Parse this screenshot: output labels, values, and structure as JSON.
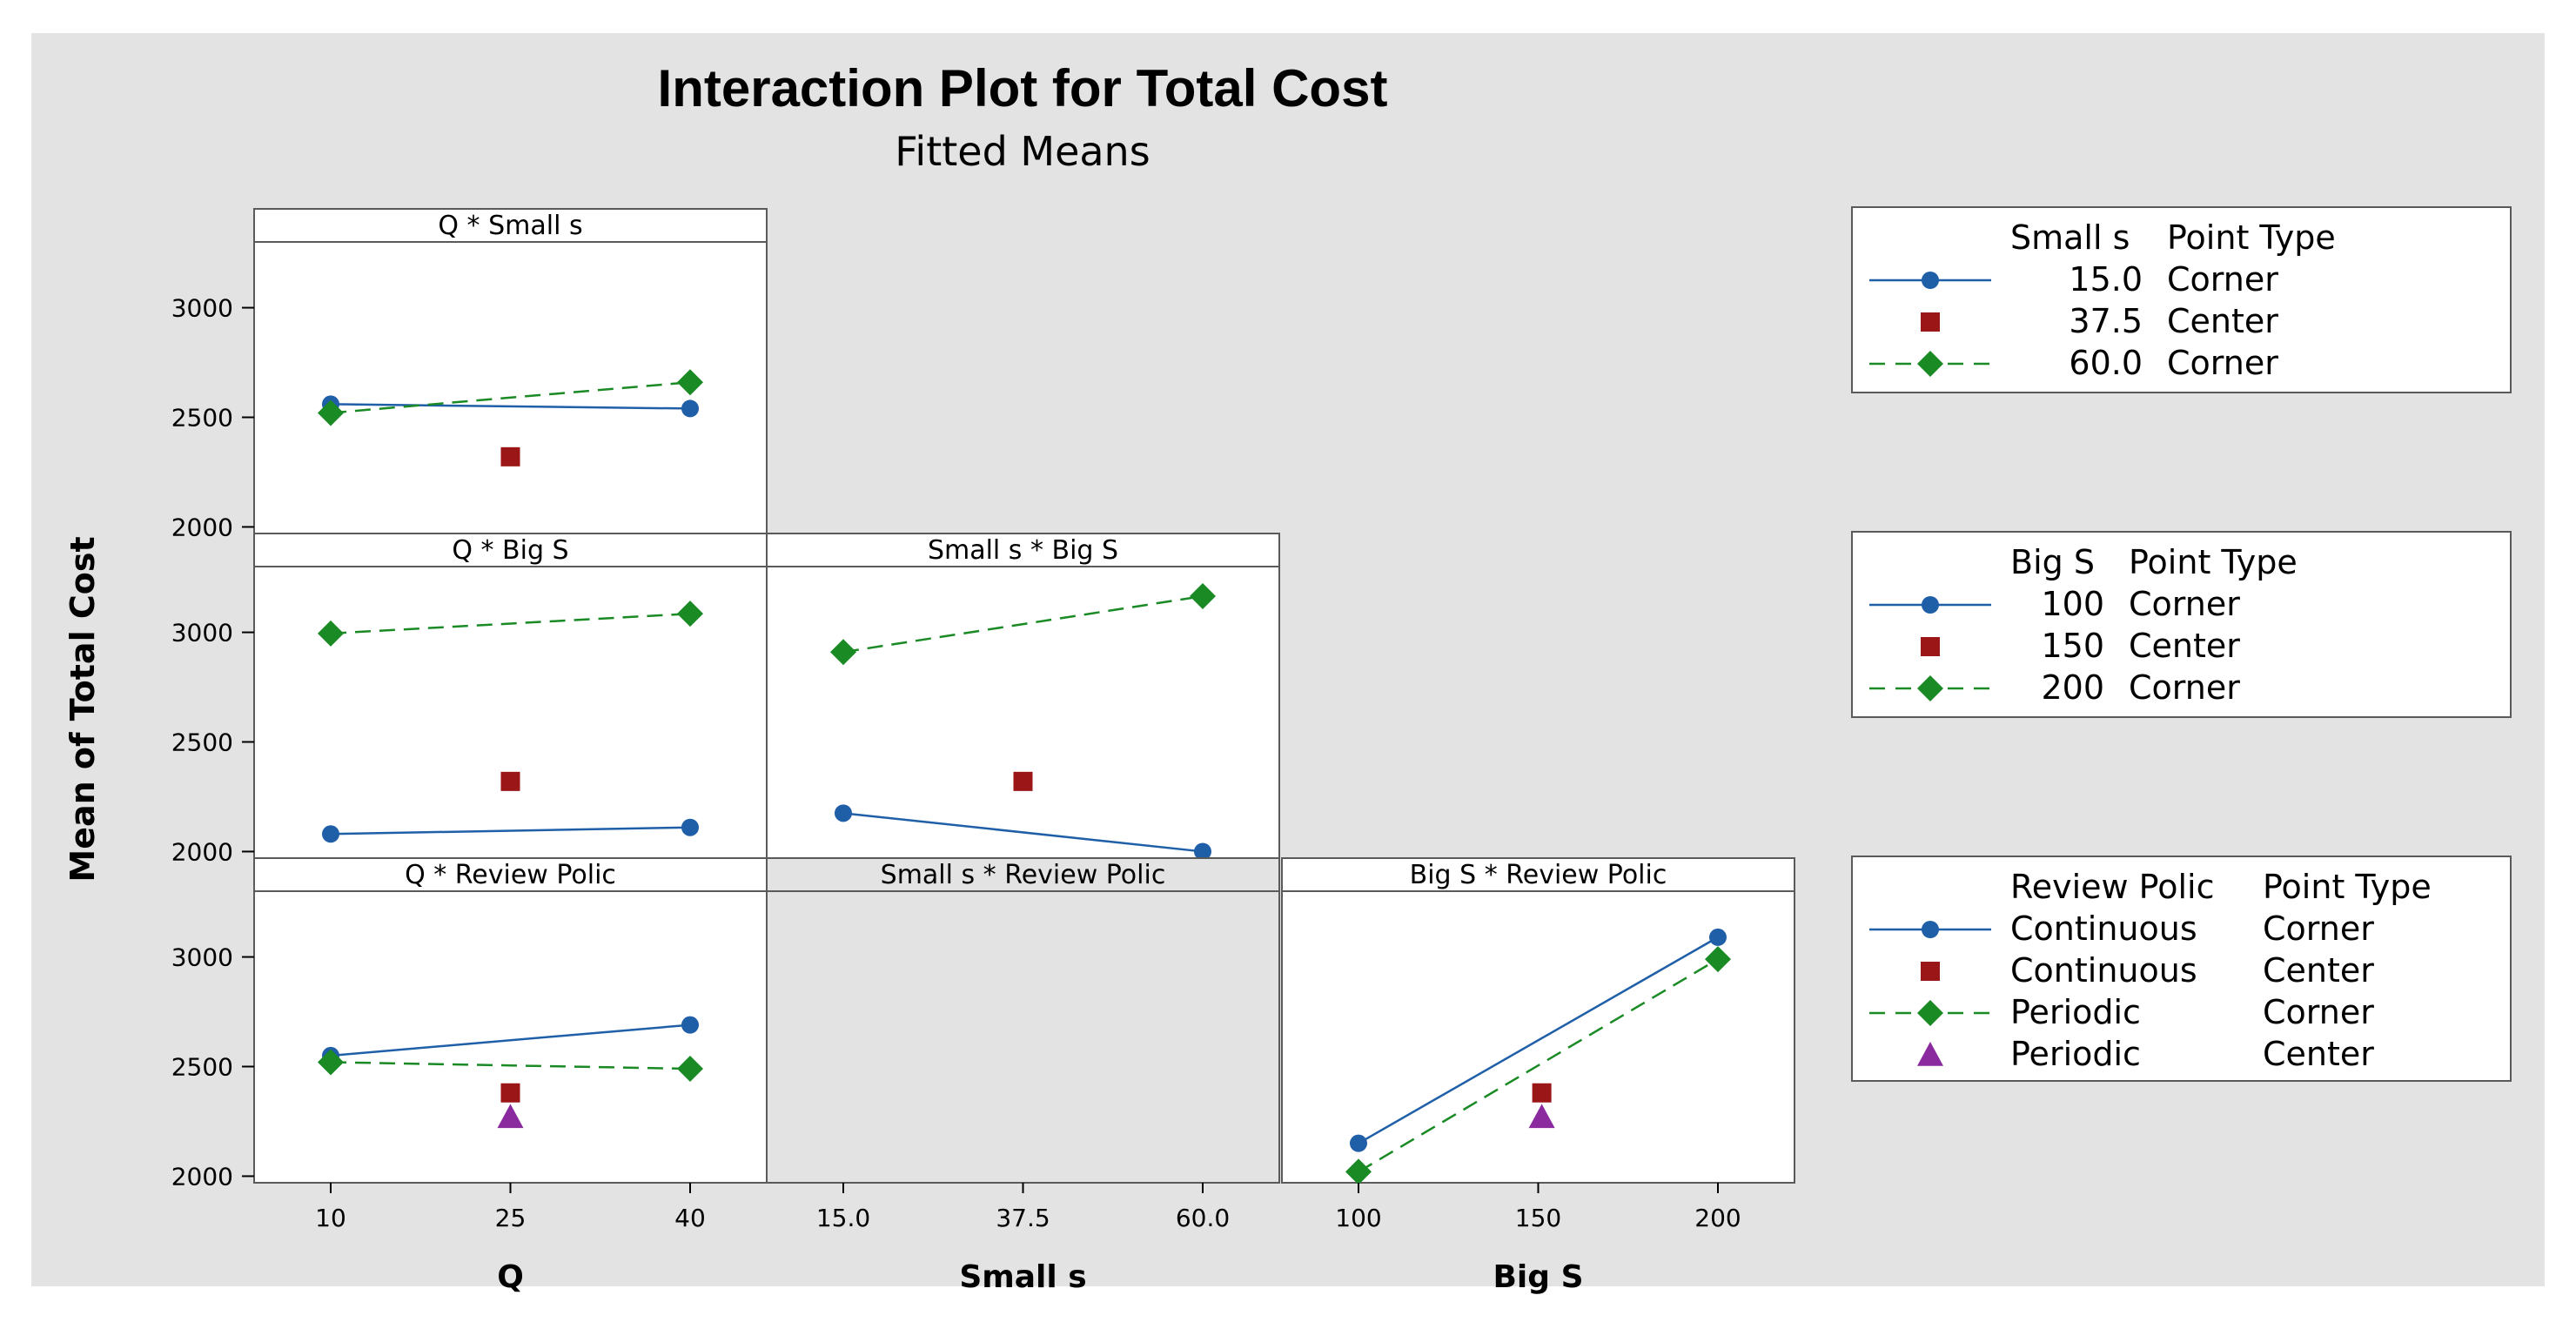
{
  "chart_data": {
    "type": "line",
    "title": "Interaction Plot for Total Cost",
    "subtitle": "Fitted Means",
    "ylabel": "Mean of Total Cost",
    "ylim": [
      1970,
      3300
    ],
    "yticks": [
      2000,
      2500,
      3000
    ],
    "factors": [
      {
        "key": "q",
        "label": "Q",
        "ticks": [
          "10",
          "25",
          "40"
        ],
        "levels": [
          10,
          25,
          40
        ]
      },
      {
        "key": "small_s",
        "label": "Small s",
        "ticks": [
          "15.0",
          "37.5",
          "60.0"
        ],
        "levels": [
          15,
          37.5,
          60
        ]
      },
      {
        "key": "big_s",
        "label": "Big S",
        "ticks": [
          "100",
          "150",
          "200"
        ],
        "levels": [
          100,
          150,
          200
        ]
      }
    ],
    "panels": [
      {
        "id": "q-small-s",
        "title": "Q * Small s",
        "row": 0,
        "col": 0,
        "series": [
          {
            "name": "15.0",
            "style": "solid-circle",
            "points": [
              [
                10,
                2560
              ],
              [
                40,
                2540
              ]
            ]
          },
          {
            "name": "60.0",
            "style": "dashed-diamond",
            "points": [
              [
                10,
                2520
              ],
              [
                40,
                2660
              ]
            ]
          }
        ],
        "centers": [
          {
            "name": "37.5",
            "style": "square",
            "x": 25,
            "y": 2320
          }
        ]
      },
      {
        "id": "q-big-s",
        "title": "Q * Big S",
        "row": 1,
        "col": 0,
        "series": [
          {
            "name": "100",
            "style": "solid-circle",
            "points": [
              [
                10,
                2080
              ],
              [
                40,
                2110
              ]
            ]
          },
          {
            "name": "200",
            "style": "dashed-diamond",
            "points": [
              [
                10,
                2995
              ],
              [
                40,
                3085
              ]
            ]
          }
        ],
        "centers": [
          {
            "name": "150",
            "style": "square",
            "x": 25,
            "y": 2320
          }
        ]
      },
      {
        "id": "small-s-big-s",
        "title": "Small s * Big S",
        "row": 1,
        "col": 1,
        "series": [
          {
            "name": "100",
            "style": "solid-circle",
            "points": [
              [
                15,
                2175
              ],
              [
                60,
                2000
              ]
            ]
          },
          {
            "name": "200",
            "style": "dashed-diamond",
            "points": [
              [
                15,
                2910
              ],
              [
                60,
                3165
              ]
            ]
          }
        ],
        "centers": [
          {
            "name": "150",
            "style": "square",
            "x": 37.5,
            "y": 2320
          }
        ]
      },
      {
        "id": "q-review-polic",
        "title": "Q * Review Polic",
        "row": 2,
        "col": 0,
        "series": [
          {
            "name": "Continuous",
            "style": "solid-circle",
            "points": [
              [
                10,
                2550
              ],
              [
                40,
                2690
              ]
            ]
          },
          {
            "name": "Periodic",
            "style": "dashed-diamond",
            "points": [
              [
                10,
                2520
              ],
              [
                40,
                2490
              ]
            ]
          }
        ],
        "centers": [
          {
            "name": "Continuous",
            "style": "square",
            "x": 25,
            "y": 2380
          },
          {
            "name": "Periodic",
            "style": "triangle",
            "x": 25,
            "y": 2270
          }
        ]
      },
      {
        "id": "small-s-review-polic",
        "title": "Small s * Review Polic",
        "row": 2,
        "col": 1,
        "empty": true,
        "series": [],
        "centers": []
      },
      {
        "id": "big-s-review-polic",
        "title": "Big S * Review Polic",
        "row": 2,
        "col": 2,
        "series": [
          {
            "name": "Continuous",
            "style": "solid-circle",
            "points": [
              [
                100,
                2150
              ],
              [
                200,
                3090
              ]
            ]
          },
          {
            "name": "Periodic",
            "style": "dashed-diamond",
            "points": [
              [
                100,
                2020
              ],
              [
                200,
                2990
              ]
            ]
          }
        ],
        "centers": [
          {
            "name": "Continuous",
            "style": "square",
            "x": 151,
            "y": 2380
          },
          {
            "name": "Periodic",
            "style": "triangle",
            "x": 151,
            "y": 2270
          }
        ]
      }
    ],
    "legends": [
      {
        "id": "small-s",
        "header_factor": "Small s",
        "header_type": "Point Type",
        "entries": [
          {
            "style": "solid-circle",
            "level": "15.0",
            "type": "Corner"
          },
          {
            "style": "square",
            "level": "37.5",
            "type": "Center"
          },
          {
            "style": "dashed-diamond",
            "level": "60.0",
            "type": "Corner"
          }
        ]
      },
      {
        "id": "big-s",
        "header_factor": "Big S",
        "header_type": "Point Type",
        "entries": [
          {
            "style": "solid-circle",
            "level": "100",
            "type": "Corner"
          },
          {
            "style": "square",
            "level": "150",
            "type": "Center"
          },
          {
            "style": "dashed-diamond",
            "level": "200",
            "type": "Corner"
          }
        ]
      },
      {
        "id": "review-polic",
        "header_factor": "Review Polic",
        "header_type": "Point Type",
        "entries": [
          {
            "style": "solid-circle",
            "level": "Continuous",
            "type": "Corner"
          },
          {
            "style": "square",
            "level": "Continuous",
            "type": "Center"
          },
          {
            "style": "dashed-diamond",
            "level": "Periodic",
            "type": "Corner"
          },
          {
            "style": "triangle",
            "level": "Periodic",
            "type": "Center"
          }
        ]
      }
    ],
    "colors": {
      "background": "#e3e3e3",
      "panel": "#ffffff",
      "circle_series": "#1f5fa8",
      "diamond_series": "#1a8a25",
      "square_center": "#9b1616",
      "triangle_center": "#8a2a9e"
    }
  }
}
